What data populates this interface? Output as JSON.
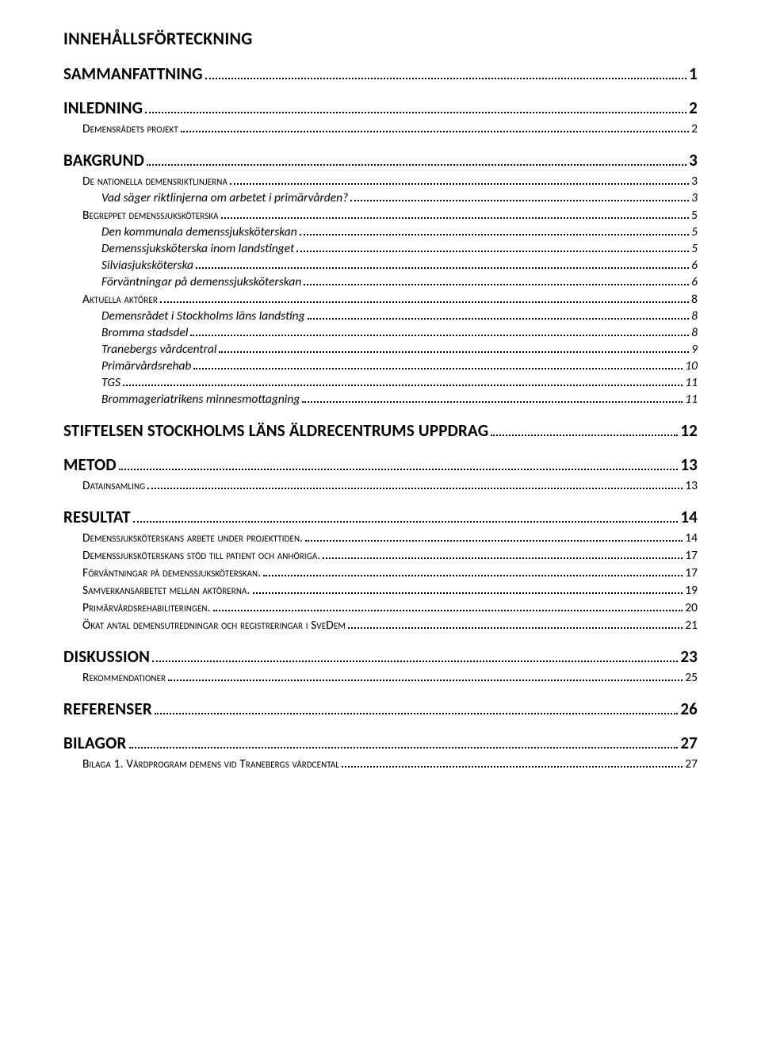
{
  "toc": {
    "title": "INNEHÅLLSFÖRTECKNING",
    "entries": [
      {
        "level": 1,
        "label": "SAMMANFATTNING",
        "page": "1"
      },
      {
        "level": 1,
        "label": "INLEDNING",
        "page": "2"
      },
      {
        "level": 2,
        "label": "Demensrådets projekt",
        "page": "2"
      },
      {
        "level": 1,
        "label": "BAKGRUND",
        "page": "3"
      },
      {
        "level": 2,
        "label": "De nationella demensriktlinjerna",
        "page": "3"
      },
      {
        "level": 3,
        "label": "Vad säger riktlinjerna om arbetet i primärvården?",
        "page": "3"
      },
      {
        "level": 2,
        "label": "Begreppet demenssjuksköterska",
        "page": "5"
      },
      {
        "level": 3,
        "label": "Den kommunala demenssjuksköterskan",
        "page": "5"
      },
      {
        "level": 3,
        "label": "Demenssjuksköterska inom landstinget",
        "page": "5"
      },
      {
        "level": 3,
        "label": "Silviasjuksköterska",
        "page": "6"
      },
      {
        "level": 3,
        "label": "Förväntningar på demenssjuksköterskan",
        "page": "6"
      },
      {
        "level": 2,
        "label": "Aktuella aktörer",
        "page": "8"
      },
      {
        "level": 3,
        "label": "Demensrådet i Stockholms läns landsting",
        "page": "8"
      },
      {
        "level": 3,
        "label": "Bromma stadsdel",
        "page": "8"
      },
      {
        "level": 3,
        "label": "Tranebergs vårdcentral",
        "page": "9"
      },
      {
        "level": 3,
        "label": "Primärvårdsrehab",
        "page": "10"
      },
      {
        "level": 3,
        "label": "TGS",
        "page": "11"
      },
      {
        "level": 3,
        "label": "Brommageriatrikens minnesmottagning",
        "page": "11"
      },
      {
        "level": 1,
        "label": "STIFTELSEN STOCKHOLMS LÄNS ÄLDRECENTRUMS UPPDRAG",
        "page": "12"
      },
      {
        "level": 1,
        "label": "METOD",
        "page": "13"
      },
      {
        "level": 2,
        "label": "Datainsamling",
        "page": "13"
      },
      {
        "level": 1,
        "label": "RESULTAT",
        "page": "14"
      },
      {
        "level": 2,
        "label": "Demenssjuksköterskans arbete under projekttiden.",
        "page": "14"
      },
      {
        "level": 2,
        "label": "Demenssjuksköterskans stöd till patient och anhöriga.",
        "page": "17"
      },
      {
        "level": 2,
        "label": "Förväntningar på demenssjuksköterskan.",
        "page": "17"
      },
      {
        "level": 2,
        "label": "Samverkansarbetet mellan aktörerna.",
        "page": "19"
      },
      {
        "level": 2,
        "label": "Primärvårdsrehabiliteringen.",
        "page": "20"
      },
      {
        "level": 2,
        "label": "Ökat antal demensutredningar och registreringar i SveDem",
        "page": "21"
      },
      {
        "level": 1,
        "label": "DISKUSSION",
        "page": "23"
      },
      {
        "level": 2,
        "label": "Rekommendationer",
        "page": "25"
      },
      {
        "level": 1,
        "label": "REFERENSER",
        "page": "26"
      },
      {
        "level": 1,
        "label": "BILAGOR",
        "page": "27"
      },
      {
        "level": 2,
        "label": "Bilaga 1. Vårdprogram demens vid Tranebergs vårdcental",
        "page": "27"
      }
    ]
  }
}
